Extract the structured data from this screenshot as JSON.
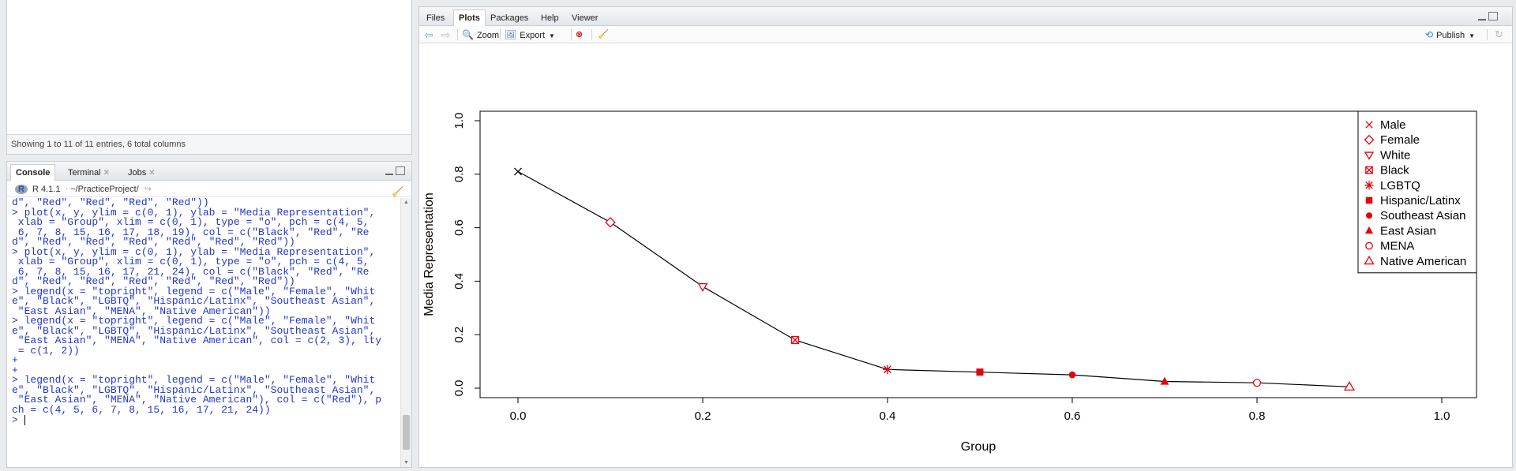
{
  "data_viewer": {
    "footer_text": "Showing 1 to 11 of 11 entries, 6 total columns"
  },
  "console": {
    "tabs": [
      {
        "label": "Console",
        "closable": false,
        "active": true
      },
      {
        "label": "Terminal",
        "closable": true,
        "active": false
      },
      {
        "label": "Jobs",
        "closable": true,
        "active": false
      }
    ],
    "r_version": "R 4.1.1",
    "separator": "·",
    "path": "~/PracticeProject/",
    "lines": [
      "d\", \"Red\", \"Red\", \"Red\", \"Red\"))",
      "> plot(x, y, ylim = c(0, 1), ylab = \"Media Representation\",",
      " xlab = \"Group\", xlim = c(0, 1), type = \"o\", pch = c(4, 5,",
      " 6, 7, 8, 15, 16, 17, 18, 19), col = c(\"Black\", \"Red\", \"Re",
      "d\", \"Red\", \"Red\", \"Red\", \"Red\", \"Red\", \"Red\"))",
      "> plot(x, y, ylim = c(0, 1), ylab = \"Media Representation\",",
      " xlab = \"Group\", xlim = c(0, 1), type = \"o\", pch = c(4, 5,",
      " 6, 7, 8, 15, 16, 17, 21, 24), col = c(\"Black\", \"Red\", \"Re",
      "d\", \"Red\", \"Red\", \"Red\", \"Red\", \"Red\", \"Red\"))",
      "> legend(x = \"topright\", legend = c(\"Male\", \"Female\", \"Whit",
      "e\", \"Black\", \"LGBTQ\", \"Hispanic/Latinx\", \"Southeast Asian\",",
      " \"East Asian\", \"MENA\", \"Native American\"))",
      "> legend(x = \"topright\", legend = c(\"Male\", \"Female\", \"Whit",
      "e\", \"Black\", \"LGBTQ\", \"Hispanic/Latinx\", \"Southeast Asian\",",
      " \"East Asian\", \"MENA\", \"Native American\", col = c(2, 3), lty",
      " = c(1, 2))",
      "+",
      "+",
      "> legend(x = \"topright\", legend = c(\"Male\", \"Female\", \"Whit",
      "e\", \"Black\", \"LGBTQ\", \"Hispanic/Latinx\", \"Southeast Asian\",",
      " \"East Asian\", \"MENA\", \"Native American\"), col = c(\"Red\"), p",
      "ch = c(4, 5, 6, 7, 8, 15, 16, 17, 21, 24))"
    ],
    "prompt": ">"
  },
  "plots_pane": {
    "tabs": [
      {
        "label": "Files",
        "active": false
      },
      {
        "label": "Plots",
        "active": true
      },
      {
        "label": "Packages",
        "active": false
      },
      {
        "label": "Help",
        "active": false
      },
      {
        "label": "Viewer",
        "active": false
      }
    ],
    "toolbar": {
      "back_icon": "arrow-left-icon",
      "forward_icon": "arrow-right-icon",
      "zoom_label": "Zoom",
      "export_label": "Export",
      "remove_icon": "remove-plot-icon",
      "clear_icon": "broom-icon",
      "publish_label": "Publish",
      "refresh_icon": "refresh-icon"
    }
  },
  "chart_data": {
    "type": "line",
    "xlabel": "Group",
    "ylabel": "Media Representation",
    "xlim": [
      0,
      1
    ],
    "ylim": [
      0,
      1
    ],
    "x_ticks": [
      "0.0",
      "0.2",
      "0.4",
      "0.6",
      "0.8",
      "1.0"
    ],
    "y_ticks": [
      "0.0",
      "0.2",
      "0.4",
      "0.6",
      "0.8",
      "1.0"
    ],
    "grid": false,
    "legend_position": "top-right",
    "points": [
      {
        "x": 0.0,
        "y": 0.81,
        "pch": 4,
        "color": "#000000"
      },
      {
        "x": 0.1,
        "y": 0.62,
        "pch": 5,
        "color": "#e8000b"
      },
      {
        "x": 0.2,
        "y": 0.38,
        "pch": 6,
        "color": "#e8000b"
      },
      {
        "x": 0.3,
        "y": 0.18,
        "pch": 7,
        "color": "#e8000b"
      },
      {
        "x": 0.4,
        "y": 0.07,
        "pch": 8,
        "color": "#e8000b"
      },
      {
        "x": 0.5,
        "y": 0.06,
        "pch": 15,
        "color": "#e8000b"
      },
      {
        "x": 0.6,
        "y": 0.05,
        "pch": 16,
        "color": "#e8000b"
      },
      {
        "x": 0.7,
        "y": 0.025,
        "pch": 17,
        "color": "#e8000b"
      },
      {
        "x": 0.8,
        "y": 0.02,
        "pch": 21,
        "color": "#e8000b"
      },
      {
        "x": 0.9,
        "y": 0.005,
        "pch": 24,
        "color": "#e8000b"
      }
    ],
    "legend": [
      {
        "label": "Male",
        "pch": 4
      },
      {
        "label": "Female",
        "pch": 5
      },
      {
        "label": "White",
        "pch": 6
      },
      {
        "label": "Black",
        "pch": 7
      },
      {
        "label": "LGBTQ",
        "pch": 8
      },
      {
        "label": "Hispanic/Latinx",
        "pch": 15
      },
      {
        "label": "Southeast Asian",
        "pch": 16
      },
      {
        "label": "East Asian",
        "pch": 17
      },
      {
        "label": "MENA",
        "pch": 21
      },
      {
        "label": "Native American",
        "pch": 24
      }
    ],
    "legend_color": "#e8000b",
    "line_color": "#000000"
  }
}
